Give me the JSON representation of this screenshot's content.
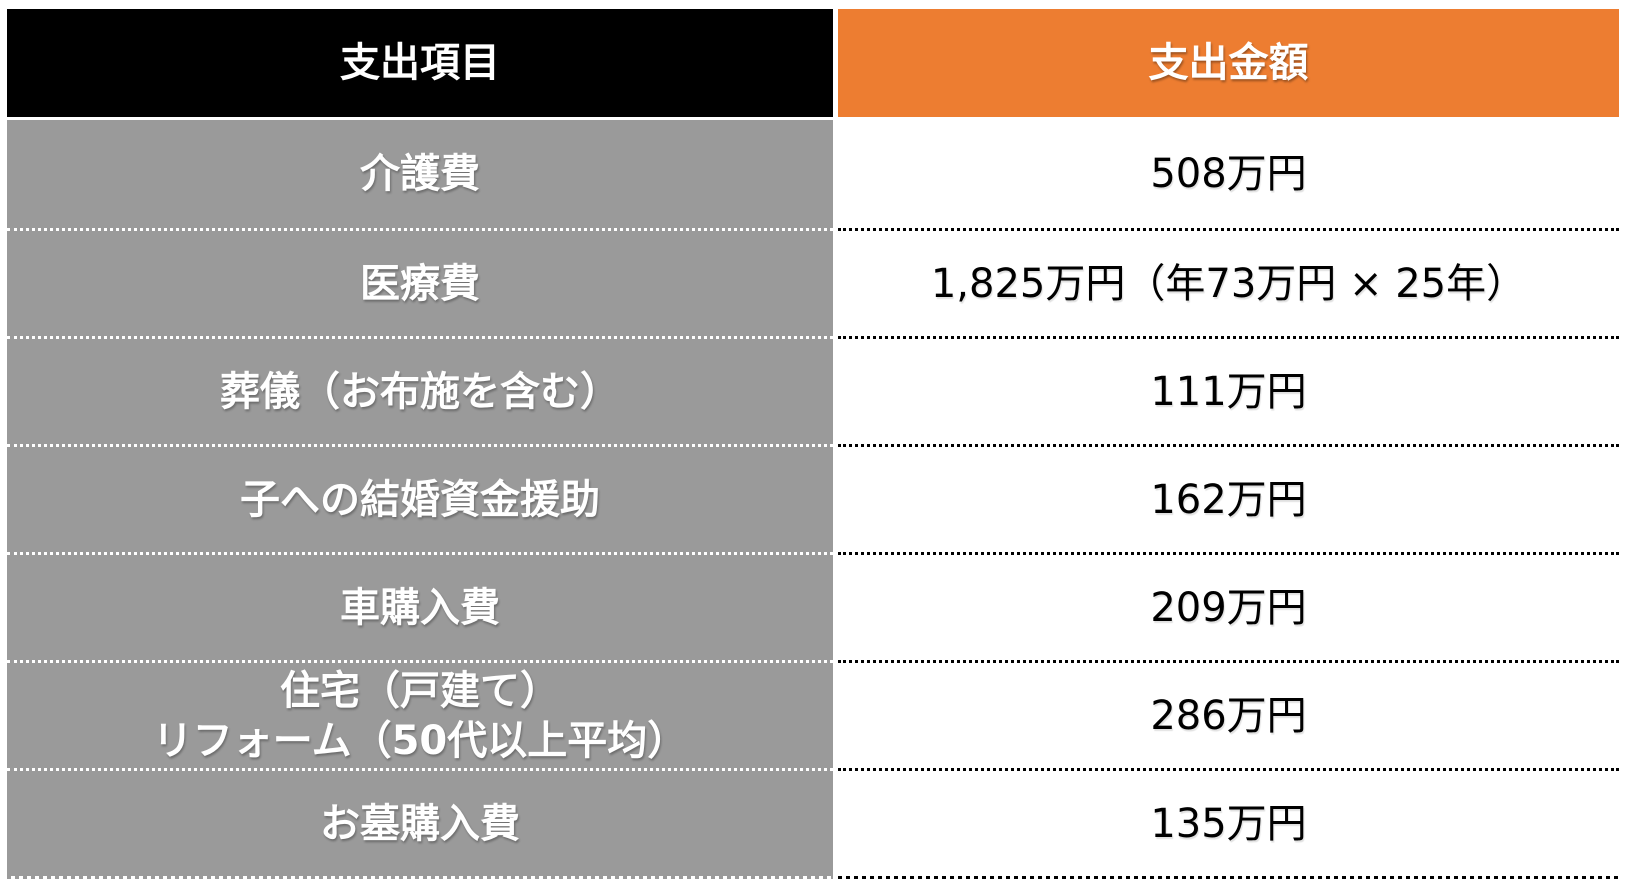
{
  "table": {
    "columns": [
      {
        "label": "支出項目"
      },
      {
        "label": "支出金額"
      }
    ],
    "rows": [
      {
        "item": "介護費",
        "amount": "508万円"
      },
      {
        "item": "医療費",
        "amount": "1,825万円（年73万円 × 25年）"
      },
      {
        "item": "葬儀（お布施を含む）",
        "amount": "111万円"
      },
      {
        "item": "子への結婚資金援助",
        "amount": "162万円"
      },
      {
        "item": "車購入費",
        "amount": "209万円"
      },
      {
        "item": "住宅（戸建て）\nリフォーム（50代以上平均）",
        "amount": "286万円"
      },
      {
        "item": "お墓購入費",
        "amount": "135万円"
      }
    ]
  },
  "colors": {
    "header_left_bg": "#000000",
    "header_right_bg": "#ED7D31",
    "item_bg": "#9A9A9A",
    "page_bg": "#FFFFFF",
    "header_text": "#FFFFFF",
    "item_text": "#FFFFFF",
    "amount_text": "#000000"
  }
}
